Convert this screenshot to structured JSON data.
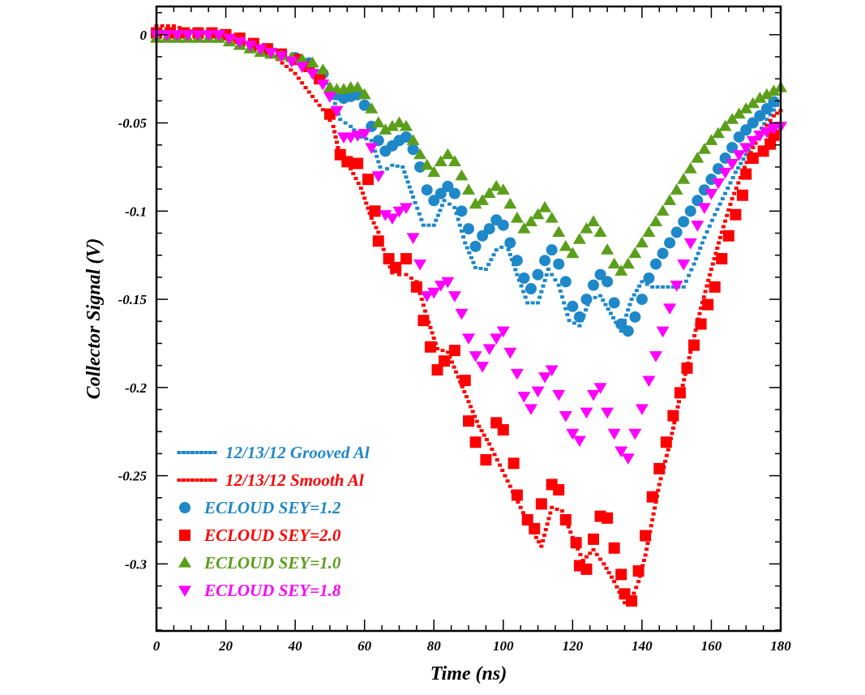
{
  "chart_data": {
    "type": "scatter",
    "title": "",
    "xlabel": "Time (ns)",
    "ylabel": "Collector Signal (V)",
    "xlim": [
      0,
      180
    ],
    "ylim": [
      -0.338,
      0.016
    ],
    "xticks": [
      "0",
      "20",
      "40",
      "60",
      "80",
      "100",
      "120",
      "140",
      "160",
      "180"
    ],
    "xtick_values": [
      0,
      20,
      40,
      60,
      80,
      100,
      120,
      140,
      160,
      180
    ],
    "yticks": [
      "0",
      "-0.05",
      "-0.1",
      "-0.15",
      "-0.2",
      "-0.25",
      "-0.3"
    ],
    "ytick_values": [
      0,
      -0.05,
      -0.1,
      -0.15,
      -0.2,
      -0.25,
      -0.3
    ],
    "grid": false,
    "legend_position": "bottom-left",
    "series": [
      {
        "name": "12/13/12 Grooved Al",
        "kind": "dotted-line",
        "color": "#1e88c8",
        "x": [
          0,
          10,
          20,
          25,
          30,
          35,
          40,
          45,
          50,
          53,
          56,
          59,
          62,
          65,
          68,
          71,
          74,
          77,
          80,
          83,
          86,
          89,
          92,
          95,
          98,
          101,
          104,
          107,
          110,
          113,
          116,
          119,
          122,
          125,
          128,
          131,
          134,
          137,
          140,
          143,
          146,
          149,
          152,
          155,
          158,
          161,
          164,
          167,
          170,
          173,
          176,
          179
        ],
        "y": [
          0.002,
          0.002,
          0.001,
          -0.004,
          -0.008,
          -0.011,
          -0.014,
          -0.018,
          -0.03,
          -0.048,
          -0.052,
          -0.058,
          -0.06,
          -0.078,
          -0.074,
          -0.075,
          -0.092,
          -0.108,
          -0.108,
          -0.094,
          -0.098,
          -0.118,
          -0.132,
          -0.133,
          -0.122,
          -0.119,
          -0.136,
          -0.152,
          -0.152,
          -0.133,
          -0.142,
          -0.162,
          -0.165,
          -0.15,
          -0.148,
          -0.158,
          -0.168,
          -0.15,
          -0.14,
          -0.143,
          -0.143,
          -0.143,
          -0.143,
          -0.13,
          -0.115,
          -0.102,
          -0.09,
          -0.078,
          -0.068,
          -0.058,
          -0.048,
          -0.04
        ]
      },
      {
        "name": "12/13/12 Smooth Al",
        "kind": "dotted-line",
        "color": "#ff0000",
        "x": [
          0,
          5,
          10,
          20,
          25,
          30,
          35,
          40,
          43,
          45,
          47,
          49,
          51,
          53,
          56,
          59,
          62,
          64,
          66,
          68,
          70,
          72,
          75,
          78,
          81,
          84,
          87,
          90,
          93,
          96,
          99,
          102,
          105,
          108,
          111,
          114,
          117,
          120,
          123,
          126,
          129,
          132,
          135,
          137,
          139,
          141,
          143,
          145,
          148,
          151,
          154,
          157,
          160,
          163,
          166,
          169,
          172,
          175,
          178,
          180
        ],
        "y": [
          0.005,
          0.005,
          0.002,
          0.0,
          -0.006,
          -0.01,
          -0.014,
          -0.022,
          -0.03,
          -0.035,
          -0.04,
          -0.045,
          -0.052,
          -0.07,
          -0.076,
          -0.087,
          -0.104,
          -0.112,
          -0.125,
          -0.135,
          -0.136,
          -0.136,
          -0.14,
          -0.16,
          -0.178,
          -0.18,
          -0.194,
          -0.208,
          -0.222,
          -0.232,
          -0.244,
          -0.256,
          -0.268,
          -0.28,
          -0.29,
          -0.268,
          -0.27,
          -0.285,
          -0.298,
          -0.292,
          -0.3,
          -0.31,
          -0.322,
          -0.32,
          -0.31,
          -0.295,
          -0.275,
          -0.255,
          -0.232,
          -0.205,
          -0.18,
          -0.155,
          -0.133,
          -0.112,
          -0.093,
          -0.078,
          -0.064,
          -0.054,
          -0.046,
          -0.043
        ]
      },
      {
        "name": "ECLOUD SEY=1.2",
        "kind": "circle",
        "color": "#1e88c8",
        "x": [
          0,
          4,
          8,
          12,
          16,
          20,
          24,
          28,
          32,
          36,
          40,
          44,
          48,
          52,
          54,
          56,
          58,
          60,
          62,
          64,
          66,
          68,
          70,
          72,
          74,
          76,
          78,
          80,
          82,
          84,
          86,
          88,
          90,
          92,
          94,
          96,
          98,
          100,
          102,
          104,
          106,
          108,
          110,
          112,
          114,
          116,
          118,
          120,
          122,
          124,
          126,
          128,
          130,
          132,
          134,
          136,
          138,
          140,
          142,
          144,
          146,
          148,
          150,
          152,
          154,
          156,
          158,
          160,
          162,
          164,
          166,
          168,
          170,
          172,
          174,
          176,
          178
        ],
        "y": [
          0.001,
          0.001,
          0.001,
          0.001,
          0.001,
          0.0,
          -0.002,
          -0.005,
          -0.008,
          -0.011,
          -0.013,
          -0.016,
          -0.022,
          -0.034,
          -0.036,
          -0.035,
          -0.034,
          -0.04,
          -0.052,
          -0.06,
          -0.066,
          -0.063,
          -0.06,
          -0.058,
          -0.065,
          -0.075,
          -0.088,
          -0.094,
          -0.09,
          -0.086,
          -0.09,
          -0.1,
          -0.11,
          -0.12,
          -0.114,
          -0.11,
          -0.105,
          -0.108,
          -0.118,
          -0.128,
          -0.138,
          -0.144,
          -0.136,
          -0.128,
          -0.122,
          -0.13,
          -0.14,
          -0.154,
          -0.16,
          -0.15,
          -0.142,
          -0.136,
          -0.14,
          -0.152,
          -0.164,
          -0.168,
          -0.16,
          -0.15,
          -0.138,
          -0.13,
          -0.124,
          -0.118,
          -0.112,
          -0.106,
          -0.1,
          -0.094,
          -0.088,
          -0.082,
          -0.076,
          -0.07,
          -0.064,
          -0.058,
          -0.054,
          -0.05,
          -0.046,
          -0.042,
          -0.038
        ]
      },
      {
        "name": "ECLOUD SEY=2.0",
        "kind": "square",
        "color": "#ff0000",
        "x": [
          0,
          4,
          8,
          12,
          16,
          20,
          24,
          28,
          32,
          36,
          40,
          44,
          47,
          50,
          53,
          55,
          58,
          61,
          63,
          64,
          67,
          69,
          72,
          75,
          77,
          79,
          81,
          83,
          86,
          89,
          90,
          92,
          95,
          98,
          100,
          103,
          104,
          107,
          109,
          111,
          114,
          116,
          118,
          121,
          122,
          124,
          126,
          128,
          130,
          132,
          134,
          135,
          137,
          139,
          141,
          143,
          145,
          147,
          149,
          151,
          153,
          155,
          157,
          159,
          161,
          163,
          165,
          167,
          169,
          170,
          172,
          175,
          177,
          178
        ],
        "y": [
          0.001,
          0.001,
          0.001,
          0.001,
          0.001,
          0.0,
          -0.002,
          -0.005,
          -0.008,
          -0.011,
          -0.014,
          -0.018,
          -0.025,
          -0.045,
          -0.068,
          -0.072,
          -0.073,
          -0.082,
          -0.1,
          -0.117,
          -0.127,
          -0.132,
          -0.127,
          -0.143,
          -0.162,
          -0.177,
          -0.19,
          -0.185,
          -0.179,
          -0.196,
          -0.219,
          -0.231,
          -0.241,
          -0.22,
          -0.224,
          -0.243,
          -0.261,
          -0.275,
          -0.28,
          -0.266,
          -0.255,
          -0.258,
          -0.275,
          -0.288,
          -0.301,
          -0.303,
          -0.286,
          -0.273,
          -0.274,
          -0.291,
          -0.306,
          -0.317,
          -0.321,
          -0.304,
          -0.284,
          -0.262,
          -0.246,
          -0.231,
          -0.216,
          -0.203,
          -0.189,
          -0.176,
          -0.164,
          -0.153,
          -0.143,
          -0.127,
          -0.114,
          -0.102,
          -0.091,
          -0.079,
          -0.07,
          -0.066,
          -0.062,
          -0.057
        ]
      },
      {
        "name": "ECLOUD SEY=1.0",
        "kind": "triangle-up",
        "color": "#5a9e1a",
        "x": [
          0,
          3,
          6,
          9,
          12,
          15,
          18,
          21,
          24,
          27,
          30,
          33,
          36,
          39,
          42,
          45,
          48,
          50,
          52,
          54,
          56,
          58,
          60,
          62,
          64,
          66,
          68,
          70,
          72,
          74,
          76,
          78,
          80,
          82,
          84,
          86,
          88,
          90,
          92,
          94,
          96,
          98,
          100,
          102,
          104,
          106,
          108,
          110,
          112,
          114,
          116,
          118,
          120,
          122,
          124,
          126,
          128,
          130,
          132,
          134,
          136,
          138,
          140,
          142,
          144,
          146,
          148,
          150,
          152,
          154,
          156,
          158,
          160,
          162,
          164,
          166,
          168,
          170,
          172,
          174,
          176,
          178,
          180
        ],
        "y": [
          -0.002,
          -0.002,
          -0.002,
          -0.002,
          -0.002,
          -0.002,
          -0.002,
          -0.004,
          -0.006,
          -0.008,
          -0.01,
          -0.011,
          -0.012,
          -0.013,
          -0.014,
          -0.016,
          -0.02,
          -0.03,
          -0.031,
          -0.031,
          -0.03,
          -0.03,
          -0.034,
          -0.042,
          -0.05,
          -0.054,
          -0.052,
          -0.05,
          -0.052,
          -0.06,
          -0.068,
          -0.074,
          -0.078,
          -0.072,
          -0.068,
          -0.072,
          -0.08,
          -0.088,
          -0.096,
          -0.094,
          -0.09,
          -0.086,
          -0.088,
          -0.096,
          -0.104,
          -0.11,
          -0.106,
          -0.102,
          -0.098,
          -0.104,
          -0.112,
          -0.12,
          -0.124,
          -0.116,
          -0.11,
          -0.106,
          -0.112,
          -0.122,
          -0.13,
          -0.134,
          -0.13,
          -0.124,
          -0.118,
          -0.112,
          -0.106,
          -0.1,
          -0.094,
          -0.088,
          -0.082,
          -0.076,
          -0.07,
          -0.065,
          -0.06,
          -0.056,
          -0.052,
          -0.048,
          -0.045,
          -0.042,
          -0.039,
          -0.036,
          -0.034,
          -0.032,
          -0.03
        ]
      },
      {
        "name": "ECLOUD SEY=1.8",
        "kind": "triangle-down",
        "color": "#ff00ff",
        "x": [
          0,
          3,
          6,
          9,
          12,
          15,
          18,
          21,
          24,
          27,
          30,
          33,
          36,
          39,
          42,
          45,
          48,
          50,
          52,
          54,
          56,
          58,
          60,
          62,
          64,
          66,
          68,
          70,
          72,
          74,
          76,
          78,
          80,
          82,
          84,
          86,
          88,
          90,
          92,
          94,
          96,
          98,
          100,
          102,
          104,
          106,
          108,
          110,
          112,
          114,
          116,
          118,
          120,
          122,
          124,
          126,
          128,
          130,
          132,
          134,
          136,
          138,
          140,
          142,
          144,
          146,
          148,
          150,
          152,
          154,
          156,
          158,
          160,
          162,
          164,
          166,
          168,
          170,
          172,
          174,
          176,
          178,
          180
        ],
        "y": [
          0.0,
          0.0,
          0.0,
          0.0,
          0.0,
          0.0,
          0.0,
          -0.002,
          -0.004,
          -0.006,
          -0.008,
          -0.01,
          -0.012,
          -0.015,
          -0.018,
          -0.022,
          -0.028,
          -0.035,
          -0.043,
          -0.058,
          -0.058,
          -0.057,
          -0.056,
          -0.064,
          -0.08,
          -0.102,
          -0.104,
          -0.1,
          -0.098,
          -0.115,
          -0.13,
          -0.148,
          -0.146,
          -0.142,
          -0.14,
          -0.148,
          -0.158,
          -0.172,
          -0.182,
          -0.188,
          -0.178,
          -0.172,
          -0.168,
          -0.18,
          -0.192,
          -0.205,
          -0.212,
          -0.202,
          -0.194,
          -0.19,
          -0.204,
          -0.216,
          -0.226,
          -0.23,
          -0.214,
          -0.204,
          -0.2,
          -0.214,
          -0.226,
          -0.236,
          -0.24,
          -0.226,
          -0.212,
          -0.196,
          -0.182,
          -0.168,
          -0.155,
          -0.142,
          -0.13,
          -0.118,
          -0.108,
          -0.098,
          -0.09,
          -0.084,
          -0.078,
          -0.073,
          -0.068,
          -0.064,
          -0.06,
          -0.057,
          -0.055,
          -0.053,
          -0.052
        ]
      }
    ]
  }
}
